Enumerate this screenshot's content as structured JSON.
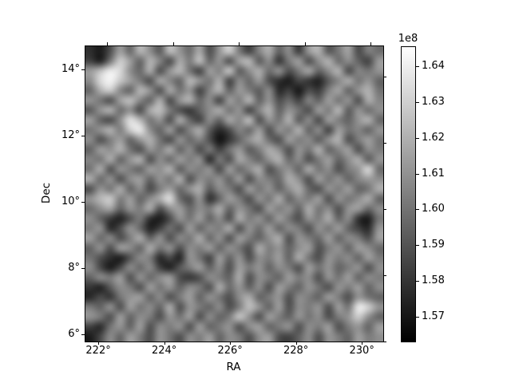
{
  "figure": {
    "background_color": "#ffffff",
    "frame_color": "#000000"
  },
  "chart_data": {
    "type": "heatmap",
    "title": "",
    "xlabel": "RA",
    "ylabel": "Dec",
    "xlim": [
      221.61,
      230.65
    ],
    "ylim": [
      5.78,
      14.7
    ],
    "x_ticks": [
      {
        "value": 222,
        "label": "222°"
      },
      {
        "value": 224,
        "label": "224°"
      },
      {
        "value": 226,
        "label": "226°"
      },
      {
        "value": 228,
        "label": "228°"
      },
      {
        "value": 230,
        "label": "230°"
      }
    ],
    "y_ticks": [
      {
        "value": 14,
        "label": "14°"
      },
      {
        "value": 12,
        "label": "12°"
      },
      {
        "value": 10,
        "label": "10°"
      },
      {
        "value": 8,
        "label": "8°"
      },
      {
        "value": 6,
        "label": "6°"
      }
    ],
    "colormap": "gray",
    "grid_on": false,
    "colorbar": {
      "offset_label": "1e8",
      "vmin_1e8": 1.5633,
      "vmax_1e8": 1.6456,
      "ticks": [
        {
          "value": 1.64,
          "label": "1.64"
        },
        {
          "value": 1.63,
          "label": "1.63"
        },
        {
          "value": 1.62,
          "label": "1.62"
        },
        {
          "value": 1.61,
          "label": "1.61"
        },
        {
          "value": 1.6,
          "label": "1.60"
        },
        {
          "value": 1.59,
          "label": "1.59"
        },
        {
          "value": 1.58,
          "label": "1.58"
        },
        {
          "value": 1.57,
          "label": "1.57"
        }
      ]
    },
    "grid_shape": [
      30,
      30
    ],
    "values_encoding": "each row string = 30 two-digit cells 00-99; value_1e8 = vmin_1e8 + cell/99*(vmax_1e8 - vmin_1e8); row 0 = top (Dec 14.7), col 0 = left (RA 221.61)",
    "values": [
      "181030624072553575584266305881472552683855226070334764285042",
      "251245806238705228664875405830647235552048623056704255382560",
      "607592855540683058724525625078355568425830486638557028524558",
      "558596786248306652387258456825554060301810282012355268455838",
      "406880523872583066455825527038604835551525083022506438587045",
      "584530627552386828587040552562487238583042255238624558306852",
      "355870425528667548302038556845582552703858453062487235584255",
      "623828558872455830684025553866527530584570355528624838587040",
      "455870488092553862305268351528524062305848703855256245523858",
      "553048623858704528584052300620385868423062485535587030486245",
      "386255704530584868385528482545603548685530584570385262305548",
      "524568385870305540624858154830665238587040553048623855683558",
      "456830584838625570355548582862405568304858386845553048588542",
      "684058305562385845703055485838623055484068553062455838526055",
      "305845683855284862405868355548306245583855684030584862384568",
      "587280486238556888423058183862483058456838554862305845556838",
      "425565385848683055624055486838584530624858386845553058624055",
      "553822123048181028584562385530684858386245305848683855181045",
      "485815305840122545306238554868305842623855483058456238251558",
      "624055304868385830554568405830624838556830584840623855483062",
      "385830625538684558305548623858453068485838556230485838625540",
      "453018103255481528125845256238583055486238684530584855386248",
      "552810285540552512354862385530624858385548306245583848583055",
      "385548623058405562302030554838683055483862485530584562385548",
      "201235554830624558385548306842583855306248385845305848623855",
      "153020455862385530486238584530556838485830554838624830584538",
      "483858306245553868305848385530487558386230554858306245928258",
      "584830623855483058456230553848785530624838584555304858805538",
      "251545583862305548583062384858305562384858305548623048583862",
      "102855386248305845305548623855483055623025385530584838624855"
    ]
  }
}
